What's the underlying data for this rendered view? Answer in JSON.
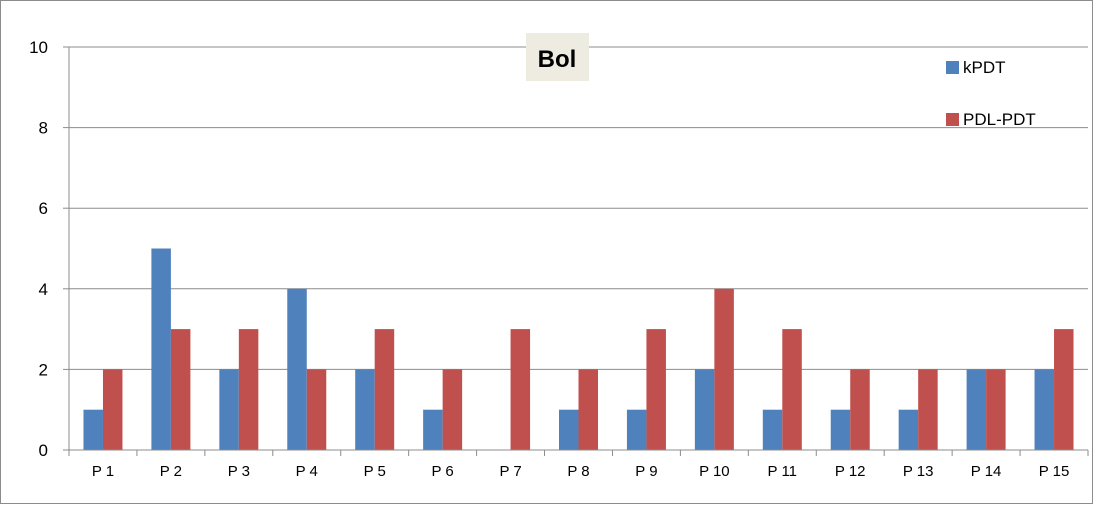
{
  "chart_data": {
    "type": "bar",
    "title": "Bol",
    "categories": [
      "P 1",
      "P 2",
      "P 3",
      "P 4",
      "P 5",
      "P 6",
      "P 7",
      "P 8",
      "P 9",
      "P 10",
      "P 11",
      "P 12",
      "P 13",
      "P 14",
      "P 15"
    ],
    "series": [
      {
        "name": "kPDT",
        "color": "#4f81bd",
        "values": [
          1,
          5,
          2,
          4,
          2,
          1,
          0,
          1,
          1,
          2,
          1,
          1,
          1,
          2,
          2
        ]
      },
      {
        "name": "PDL-PDT",
        "color": "#c0504d",
        "values": [
          2,
          3,
          3,
          2,
          3,
          2,
          3,
          2,
          3,
          4,
          3,
          2,
          2,
          2,
          3
        ]
      }
    ],
    "y_ticks": [
      "0",
      "2",
      "4",
      "6",
      "8",
      "10"
    ],
    "ylim": [
      0,
      10
    ],
    "xlabel": "",
    "ylabel": "",
    "grid": true,
    "legend_position": "top-right"
  }
}
